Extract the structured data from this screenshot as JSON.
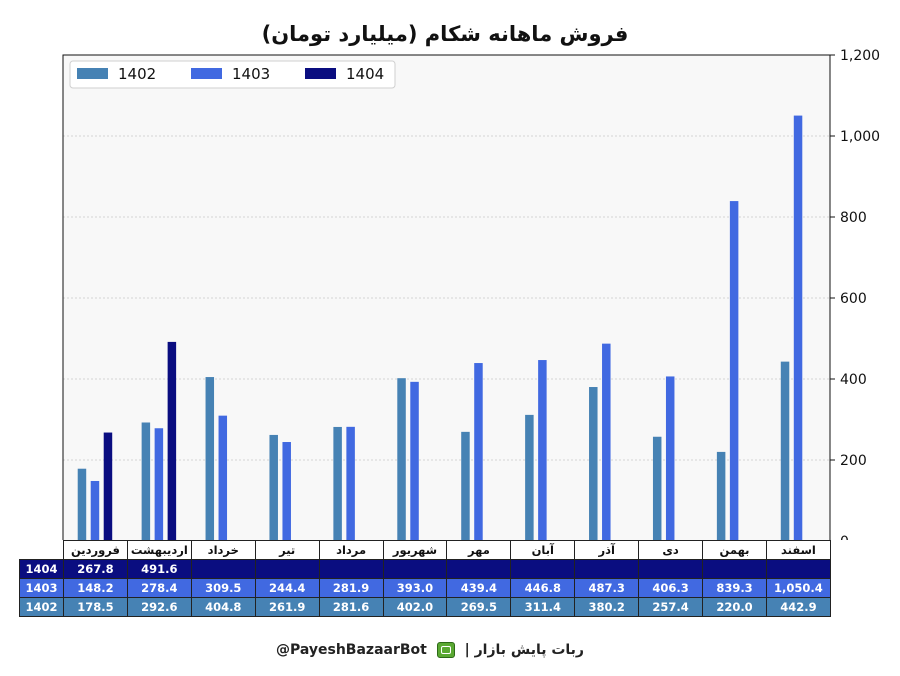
{
  "chart_data": {
    "type": "bar",
    "title": "فروش ماهانه شکام (میلیارد تومان)",
    "categories": [
      "فروردین",
      "اردیبهشت",
      "خرداد",
      "تیر",
      "مرداد",
      "شهریور",
      "مهر",
      "آبان",
      "آذر",
      "دی",
      "بهمن",
      "اسفند"
    ],
    "series": [
      {
        "name": "1402",
        "color": "#4682b4",
        "values": [
          178.5,
          292.6,
          404.8,
          261.9,
          281.6,
          402.0,
          269.5,
          311.4,
          380.2,
          257.4,
          220.0,
          442.9
        ],
        "labels": [
          "178.5",
          "292.6",
          "404.8",
          "261.9",
          "281.6",
          "402.0",
          "269.5",
          "311.4",
          "380.2",
          "257.4",
          "220.0",
          "442.9"
        ]
      },
      {
        "name": "1403",
        "color": "#4169e1",
        "values": [
          148.2,
          278.4,
          309.5,
          244.4,
          281.9,
          393.0,
          439.4,
          446.8,
          487.3,
          406.3,
          839.3,
          1050.4
        ],
        "labels": [
          "148.2",
          "278.4",
          "309.5",
          "244.4",
          "281.9",
          "393.0",
          "439.4",
          "446.8",
          "487.3",
          "406.3",
          "839.3",
          "1,050.4"
        ]
      },
      {
        "name": "1404",
        "color": "#0a0d80",
        "values": [
          267.8,
          491.6,
          null,
          null,
          null,
          null,
          null,
          null,
          null,
          null,
          null,
          null
        ],
        "labels": [
          "267.8",
          "491.6",
          "",
          "",
          "",
          "",
          "",
          "",
          "",
          "",
          "",
          ""
        ]
      }
    ],
    "ylim": [
      0,
      1200
    ],
    "yticks": [
      "0",
      "200",
      "400",
      "600",
      "800",
      "1,000",
      "1,200"
    ],
    "yaxis_side": "right",
    "grid": true,
    "legend_position": "top-left"
  },
  "table": {
    "row_labels": [
      "1404",
      "1403",
      "1402"
    ]
  },
  "footer": {
    "handle": "@PayeshBazaarBot",
    "separator": "|",
    "bot_name": "ربات پایش بازار",
    "icon": "robot-icon"
  }
}
